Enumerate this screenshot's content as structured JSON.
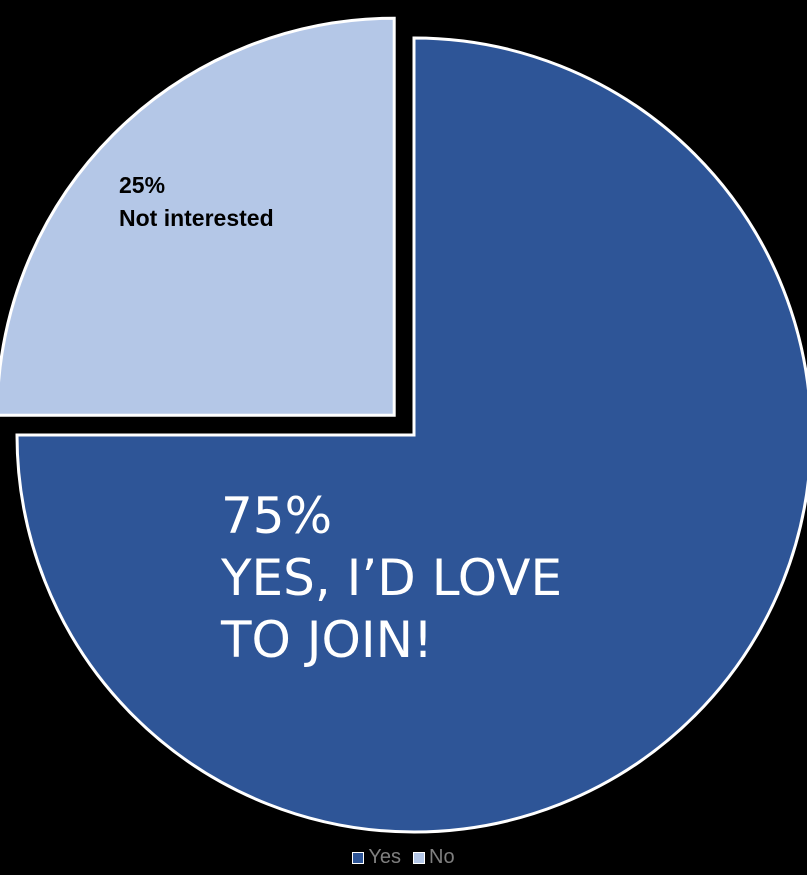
{
  "chart_data": {
    "type": "pie",
    "slices": [
      {
        "name": "Yes",
        "value": 75,
        "color": "#2e5597",
        "label_lines": [
          "75%",
          "YES, I’D LOVE",
          "TO JOIN!"
        ],
        "label_color": "#ffffff",
        "exploded": false
      },
      {
        "name": "No",
        "value": 25,
        "color": "#b4c7e7",
        "label_lines": [
          "25%",
          "Not interested"
        ],
        "label_color": "#000000",
        "exploded": true
      }
    ],
    "start_angle_deg": 0,
    "direction": "clockwise",
    "slice_border_color": "#ffffff",
    "legend_position": "bottom"
  },
  "legend": {
    "items": [
      {
        "label": "Yes",
        "color": "#2e5597"
      },
      {
        "label": "No",
        "color": "#b4c7e7"
      }
    ]
  }
}
